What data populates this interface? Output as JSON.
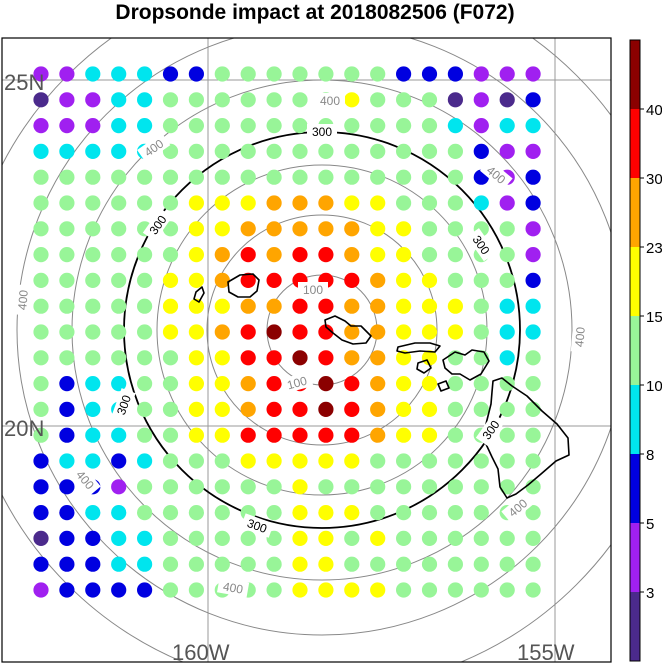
{
  "title": "Dropsonde impact at 2018082506 (F072)",
  "lat_labels": [
    "25N",
    "20N"
  ],
  "lon_labels": [
    "160W",
    "155W"
  ],
  "ring_labels": {
    "inner": "100",
    "black": "300",
    "outer": "400"
  },
  "colorbar": {
    "colors": [
      "#4b2a8c",
      "#a020f0",
      "#0000e0",
      "#00e5ee",
      "#98f598",
      "#ffff00",
      "#ffa500",
      "#ff0000",
      "#8b0000"
    ],
    "tick_labels": [
      "3",
      "5",
      "8",
      "10",
      "15",
      "23",
      "30",
      "40"
    ]
  },
  "dot_grid": {
    "columns": 20,
    "rows": 21,
    "color_index_rows": [
      "11333224444444222111",
      "01133444444454440102",
      "11133444444444443133",
      "33333444444444444211",
      "44444444444444444212",
      "44444455566655444312",
      "44444455666665544441",
      "44444456767765544441",
      "44444556777776554442",
      "44444555667766555433",
      "44444556787766555433",
      "44444455778766554434",
      "42334455677876554444",
      "42334455677876554444",
      "42334455777776554444",
      "23323444555554444444",
      "22214444445444444444",
      "22334444445554444444",
      "02233444445545444444",
      "22233444445544444444",
      "12222444445555444444"
    ]
  }
}
